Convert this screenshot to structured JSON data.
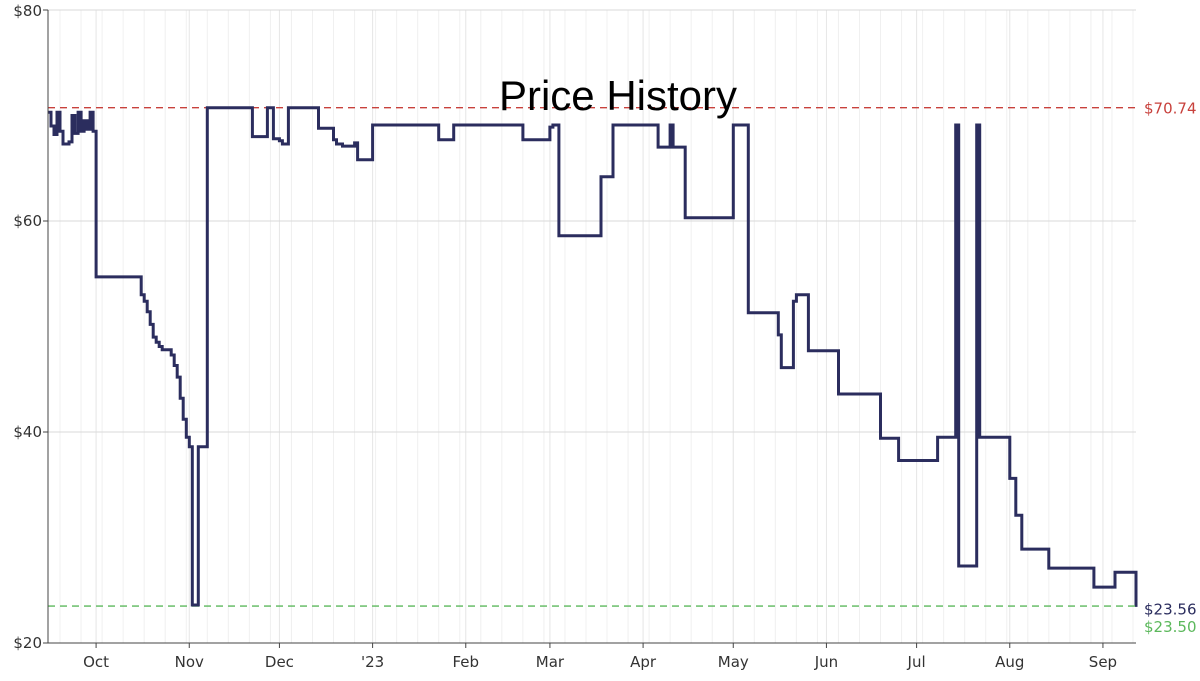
{
  "chart_data": {
    "type": "line",
    "title": "Price History",
    "x_tick_labels": [
      "Oct",
      "Nov",
      "Dec",
      "'23",
      "Feb",
      "Mar",
      "Apr",
      "May",
      "Jun",
      "Jul",
      "Aug",
      "Sep"
    ],
    "y_tick_labels": [
      "$20",
      "$40",
      "$60",
      "$80"
    ],
    "y_ticks": [
      20,
      40,
      60,
      80
    ],
    "ylim": [
      20,
      80
    ],
    "xlim": [
      "2022-09-15",
      "2023-09-12"
    ],
    "grid": true,
    "legend": "none",
    "series": [
      {
        "color": "#2b2d5e",
        "step": true,
        "points": [
          [
            "2022-09-15",
            70.3
          ],
          [
            "2022-09-16",
            69.0
          ],
          [
            "2022-09-17",
            68.2
          ],
          [
            "2022-09-18",
            70.3
          ],
          [
            "2022-09-19",
            68.5
          ],
          [
            "2022-09-20",
            67.3
          ],
          [
            "2022-09-22",
            67.5
          ],
          [
            "2022-09-23",
            70.0
          ],
          [
            "2022-09-24",
            68.3
          ],
          [
            "2022-09-25",
            70.3
          ],
          [
            "2022-09-26",
            68.5
          ],
          [
            "2022-09-27",
            69.5
          ],
          [
            "2022-09-28",
            68.7
          ],
          [
            "2022-09-29",
            70.3
          ],
          [
            "2022-09-30",
            68.5
          ],
          [
            "2022-10-01",
            54.7
          ],
          [
            "2022-10-16",
            53.0
          ],
          [
            "2022-10-17",
            52.4
          ],
          [
            "2022-10-18",
            51.4
          ],
          [
            "2022-10-19",
            50.2
          ],
          [
            "2022-10-20",
            49.0
          ],
          [
            "2022-10-21",
            48.5
          ],
          [
            "2022-10-22",
            48.1
          ],
          [
            "2022-10-23",
            47.8
          ],
          [
            "2022-10-26",
            47.3
          ],
          [
            "2022-10-27",
            46.3
          ],
          [
            "2022-10-28",
            45.2
          ],
          [
            "2022-10-29",
            43.2
          ],
          [
            "2022-10-30",
            41.2
          ],
          [
            "2022-10-31",
            39.5
          ],
          [
            "2022-11-01",
            38.6
          ],
          [
            "2022-11-02",
            23.6
          ],
          [
            "2022-11-04",
            38.6
          ],
          [
            "2022-11-07",
            70.74
          ],
          [
            "2022-11-22",
            68.0
          ],
          [
            "2022-11-27",
            70.74
          ],
          [
            "2022-11-29",
            67.8
          ],
          [
            "2022-12-01",
            67.6
          ],
          [
            "2022-12-02",
            67.3
          ],
          [
            "2022-12-04",
            70.74
          ],
          [
            "2022-12-14",
            68.8
          ],
          [
            "2022-12-19",
            67.7
          ],
          [
            "2022-12-20",
            67.3
          ],
          [
            "2022-12-22",
            67.1
          ],
          [
            "2022-12-26",
            67.4
          ],
          [
            "2022-12-27",
            65.8
          ],
          [
            "2023-01-01",
            69.1
          ],
          [
            "2023-01-23",
            67.7
          ],
          [
            "2023-01-28",
            69.1
          ],
          [
            "2023-02-20",
            67.7
          ],
          [
            "2023-03-01",
            68.9
          ],
          [
            "2023-03-02",
            69.1
          ],
          [
            "2023-03-04",
            58.6
          ],
          [
            "2023-03-18",
            64.2
          ],
          [
            "2023-03-22",
            69.1
          ],
          [
            "2023-04-06",
            67.0
          ],
          [
            "2023-04-10",
            69.1
          ],
          [
            "2023-04-11",
            67.0
          ],
          [
            "2023-04-15",
            60.3
          ],
          [
            "2023-05-01",
            69.1
          ],
          [
            "2023-05-06",
            51.3
          ],
          [
            "2023-05-16",
            49.2
          ],
          [
            "2023-05-17",
            46.1
          ],
          [
            "2023-05-21",
            52.4
          ],
          [
            "2023-05-22",
            53.0
          ],
          [
            "2023-05-26",
            47.7
          ],
          [
            "2023-06-05",
            43.6
          ],
          [
            "2023-06-19",
            39.4
          ],
          [
            "2023-06-25",
            37.3
          ],
          [
            "2023-07-08",
            39.5
          ],
          [
            "2023-07-14",
            69.1
          ],
          [
            "2023-07-15",
            27.3
          ],
          [
            "2023-07-21",
            69.1
          ],
          [
            "2023-07-22",
            39.5
          ],
          [
            "2023-08-01",
            35.6
          ],
          [
            "2023-08-03",
            32.1
          ],
          [
            "2023-08-05",
            28.9
          ],
          [
            "2023-08-14",
            27.1
          ],
          [
            "2023-08-29",
            25.3
          ],
          [
            "2023-09-05",
            26.7
          ],
          [
            "2023-09-18",
            25.1
          ],
          [
            "2023-09-19",
            23.56
          ],
          [
            "2023-09-19",
            23.56
          ]
        ]
      }
    ],
    "reference_lines": [
      {
        "value": 70.74,
        "label": "$70.74",
        "color": "#c8413c"
      },
      {
        "value": 23.5,
        "label": "$23.50",
        "color": "#5cb85c"
      }
    ],
    "end_label": {
      "value": 23.56,
      "label": "$23.56",
      "color": "#2b2d5e"
    }
  }
}
